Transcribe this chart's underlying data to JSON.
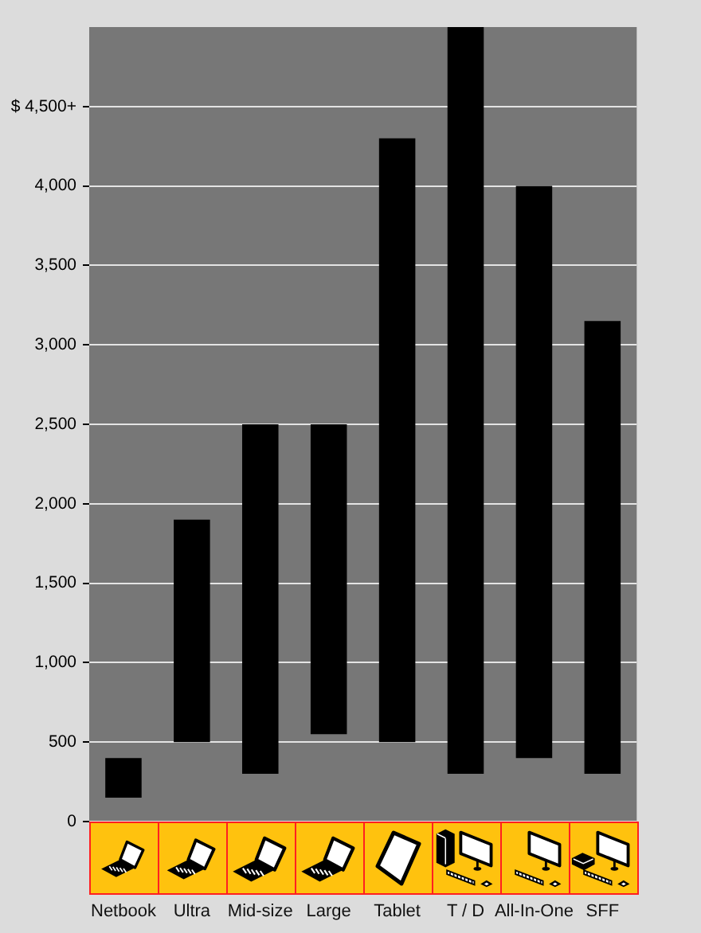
{
  "chart_data": {
    "type": "bar",
    "categories": [
      "Netbook",
      "Ultra",
      "Mid-size",
      "Large",
      "Tablet",
      "T / D",
      "All-In-One",
      "SFF"
    ],
    "base": [
      150,
      500,
      300,
      550,
      500,
      300,
      400,
      300
    ],
    "values": [
      250,
      1400,
      2200,
      1950,
      3800,
      4700,
      3600,
      2850
    ],
    "color": "#000000",
    "ylim": [
      0,
      5000
    ],
    "yticks": [
      0,
      500,
      {
        "value": 1000,
        "label": "1,000"
      },
      {
        "value": 1500,
        "label": "1,500"
      },
      {
        "value": 2000,
        "label": "2,000"
      },
      {
        "value": 2500,
        "label": "2,500"
      },
      {
        "value": 3000,
        "label": "3,000"
      },
      {
        "value": 3500,
        "label": "3,500"
      },
      {
        "value": 4000,
        "label": "4,000"
      },
      {
        "value": 4500,
        "label": "$ 4,500+"
      }
    ],
    "grid": "y"
  }
}
